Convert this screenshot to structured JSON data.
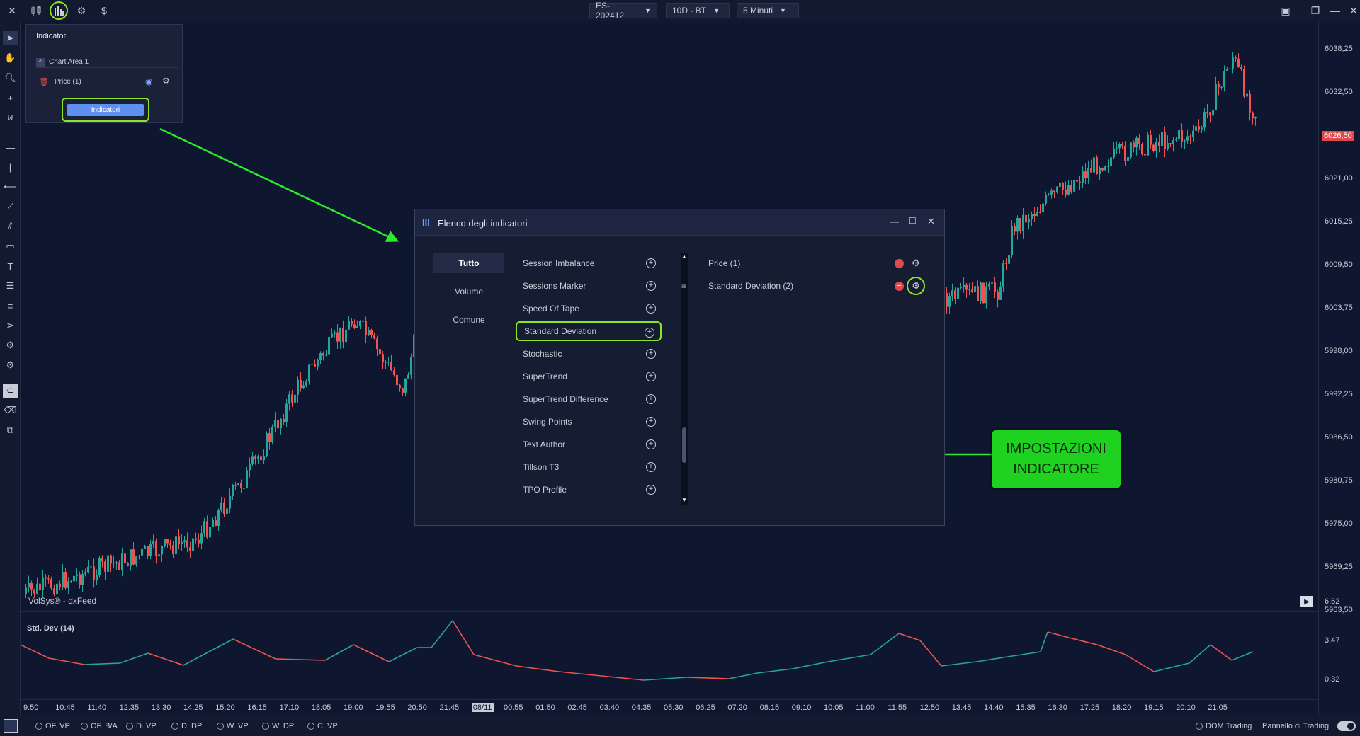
{
  "topbar": {
    "symbol": "ES-202412",
    "range": "10D - BT",
    "timeframe": "5 Minuti",
    "dollar_icon": "$"
  },
  "indicators_panel": {
    "title": "Indicatori",
    "chart_area": "Chart Area 1",
    "price_item": "Price (1)",
    "button_label": "Indicatori"
  },
  "chart": {
    "source": "VolSys® - dxFeed",
    "price_labels": [
      "6038,25",
      "6032,50",
      "6026,50",
      "6021,00",
      "6015,25",
      "6009,50",
      "6003,75",
      "5998,00",
      "5992,25",
      "5986,50",
      "5980,75",
      "5975,00",
      "5969,25",
      "5963,50"
    ],
    "current_price": "6026,50",
    "indicator_title": "Std. Dev (14)",
    "indicator_labels": [
      "6,62",
      "3,47",
      "0,32"
    ],
    "time_labels": [
      "9:50",
      "10:45",
      "11:40",
      "12:35",
      "13:30",
      "14:25",
      "15:20",
      "16:15",
      "17:10",
      "18:05",
      "19:00",
      "19:55",
      "20:50",
      "21:45",
      "08/11",
      "00:55",
      "01:50",
      "02:45",
      "03:40",
      "04:35",
      "05:30",
      "06:25",
      "07:20",
      "08:15",
      "09:10",
      "10:05",
      "11:00",
      "11:55",
      "12:50",
      "13:45",
      "14:40",
      "15:35",
      "16:30",
      "17:25",
      "18:20",
      "19:15",
      "20:10",
      "21:05"
    ]
  },
  "dialog": {
    "title": "Elenco degli indicatori",
    "categories": [
      "Tutto",
      "Volume",
      "Comune"
    ],
    "indicators": [
      "Session Imbalance",
      "Sessions Marker",
      "Speed Of Tape",
      "Standard Deviation",
      "Stochastic",
      "SuperTrend",
      "SuperTrend Difference",
      "Swing Points",
      "Text Author",
      "Tillson T3",
      "TPO Profile"
    ],
    "selected": [
      "Price (1)",
      "Standard Deviation (2)"
    ]
  },
  "callout": {
    "line1": "IMPOSTAZIONI",
    "line2": "INDICATORE"
  },
  "bottombar": {
    "items": [
      "OF. VP",
      "OF. B/A",
      "D. VP",
      "D. DP",
      "W. VP",
      "W. DP",
      "C. VP"
    ],
    "dom_trading": "DOM Trading",
    "panel": "Pannello di Trading"
  },
  "colors": {
    "up": "#26a69a",
    "down": "#ef5350",
    "highlight": "#8de623",
    "callout_bg": "#1fd21f",
    "accent_button": "#5f8ff0"
  }
}
